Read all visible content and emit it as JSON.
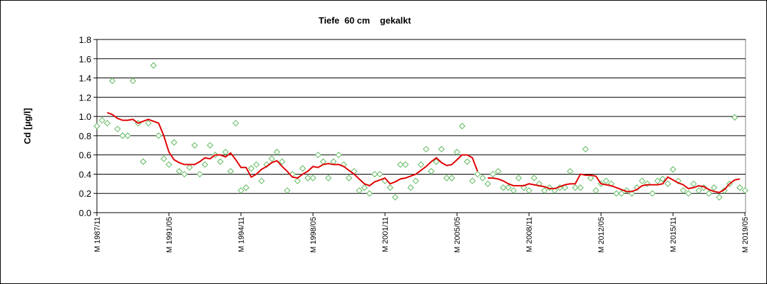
{
  "chart_data": {
    "type": "scatter",
    "title": "Tiefe  60 cm    gekalkt",
    "y_label": "Cd [µg/l]",
    "categories": [
      "M 1987/11",
      null,
      null,
      null,
      null,
      null,
      null,
      null,
      null,
      null,
      null,
      null,
      null,
      null,
      "M 1991/05",
      null,
      null,
      null,
      null,
      null,
      null,
      null,
      null,
      null,
      null,
      null,
      null,
      null,
      "M 1994/11",
      null,
      null,
      null,
      null,
      null,
      null,
      null,
      null,
      null,
      null,
      null,
      null,
      null,
      "M 1998/05",
      null,
      null,
      null,
      null,
      null,
      null,
      null,
      null,
      null,
      null,
      null,
      null,
      null,
      "M 2001/11",
      null,
      null,
      null,
      null,
      null,
      null,
      null,
      null,
      null,
      null,
      null,
      null,
      null,
      "M 2005/05",
      null,
      null,
      null,
      null,
      null,
      null,
      null,
      null,
      null,
      null,
      null,
      null,
      null,
      "M 2008/11",
      null,
      null,
      null,
      null,
      null,
      null,
      null,
      null,
      null,
      null,
      null,
      null,
      null,
      "M 2012/05",
      null,
      null,
      null,
      null,
      null,
      null,
      null,
      null,
      null,
      null,
      null,
      null,
      null,
      "M 2015/11",
      null,
      null,
      null,
      null,
      null,
      null,
      null,
      null,
      null,
      null,
      null,
      null,
      null,
      "M 2019/05"
    ],
    "series": [
      {
        "type": "scatter",
        "color": "#5cb85c",
        "values": [
          0.9,
          0.96,
          0.93,
          1.37,
          0.87,
          0.8,
          0.8,
          1.37,
          0.93,
          0.53,
          0.93,
          1.53,
          0.8,
          0.56,
          0.5,
          0.73,
          0.43,
          0.4,
          0.47,
          0.7,
          0.4,
          0.5,
          0.7,
          0.6,
          0.53,
          0.63,
          0.43,
          0.93,
          0.23,
          0.26,
          0.46,
          0.5,
          0.33,
          0.5,
          0.56,
          0.63,
          0.53,
          0.23,
          0.4,
          0.33,
          0.46,
          0.36,
          0.36,
          0.6,
          0.53,
          0.36,
          0.53,
          0.6,
          0.5,
          0.36,
          0.43,
          0.23,
          0.26,
          0.2,
          0.4,
          0.4,
          0.33,
          0.26,
          0.16,
          0.5,
          0.5,
          0.26,
          0.33,
          0.5,
          0.66,
          0.43,
          0.53,
          0.66,
          0.36,
          0.36,
          0.63,
          0.9,
          0.53,
          0.33,
          0.4,
          0.36,
          0.3,
          0.4,
          0.43,
          0.26,
          0.26,
          0.23,
          0.36,
          0.26,
          0.23,
          0.36,
          0.3,
          0.23,
          0.26,
          0.23,
          0.26,
          0.26,
          0.43,
          0.26,
          0.26,
          0.66,
          0.36,
          0.23,
          0.3,
          0.33,
          0.3,
          0.2,
          0.2,
          0.23,
          0.2,
          0.26,
          0.33,
          0.3,
          0.2,
          0.33,
          0.35,
          0.3,
          0.45,
          0.33,
          0.23,
          0.2,
          0.3,
          0.23,
          0.26,
          0.2,
          0.26,
          0.16,
          0.23,
          0.3,
          0.99,
          0.26,
          0.23
        ]
      },
      {
        "type": "line",
        "color": "#e00000",
        "values": [
          null,
          null,
          1.04,
          1.02,
          0.98,
          0.96,
          0.96,
          0.97,
          0.93,
          0.95,
          0.97,
          0.95,
          0.93,
          0.8,
          0.63,
          0.55,
          0.52,
          0.5,
          0.5,
          0.5,
          0.53,
          0.57,
          0.56,
          0.6,
          0.6,
          0.58,
          0.62,
          0.55,
          0.47,
          0.47,
          0.37,
          0.4,
          0.45,
          0.48,
          0.52,
          0.54,
          0.48,
          0.43,
          0.37,
          0.36,
          0.4,
          0.43,
          0.48,
          0.47,
          0.5,
          0.51,
          0.5,
          0.5,
          0.48,
          0.44,
          0.4,
          0.35,
          0.3,
          0.28,
          0.32,
          0.34,
          0.36,
          0.3,
          0.32,
          0.35,
          0.36,
          0.38,
          0.4,
          0.44,
          0.48,
          0.53,
          0.57,
          0.52,
          0.49,
          0.5,
          0.55,
          0.6,
          0.6,
          0.57,
          0.43,
          null,
          0.36,
          0.36,
          0.35,
          0.33,
          0.3,
          0.28,
          0.28,
          0.28,
          0.3,
          0.29,
          0.28,
          0.27,
          0.25,
          0.25,
          0.27,
          0.29,
          0.3,
          0.3,
          0.4,
          0.39,
          0.39,
          0.38,
          0.3,
          0.29,
          0.28,
          0.26,
          0.24,
          0.22,
          0.22,
          0.24,
          0.28,
          0.29,
          0.29,
          0.29,
          0.3,
          0.37,
          0.34,
          0.31,
          0.29,
          0.25,
          0.26,
          0.28,
          0.27,
          0.24,
          0.22,
          0.21,
          0.24,
          0.3,
          0.34,
          0.35,
          null
        ]
      }
    ],
    "ylim": [
      0,
      1.8
    ],
    "yticks": [
      {
        "value": 0,
        "label": "0.0"
      },
      {
        "value": 0.2,
        "label": "0.2"
      },
      {
        "value": 0.4,
        "label": "0.4"
      },
      {
        "value": 0.6,
        "label": "0.6"
      },
      {
        "value": 0.8,
        "label": "0.8"
      },
      {
        "value": 1,
        "label": "1.0"
      },
      {
        "value": 1.2,
        "label": "1.2"
      },
      {
        "value": 1.4,
        "label": "1.4"
      },
      {
        "value": 1.6,
        "label": "1.6"
      },
      {
        "value": 1.8,
        "label": "1.8"
      }
    ],
    "grid": true
  }
}
